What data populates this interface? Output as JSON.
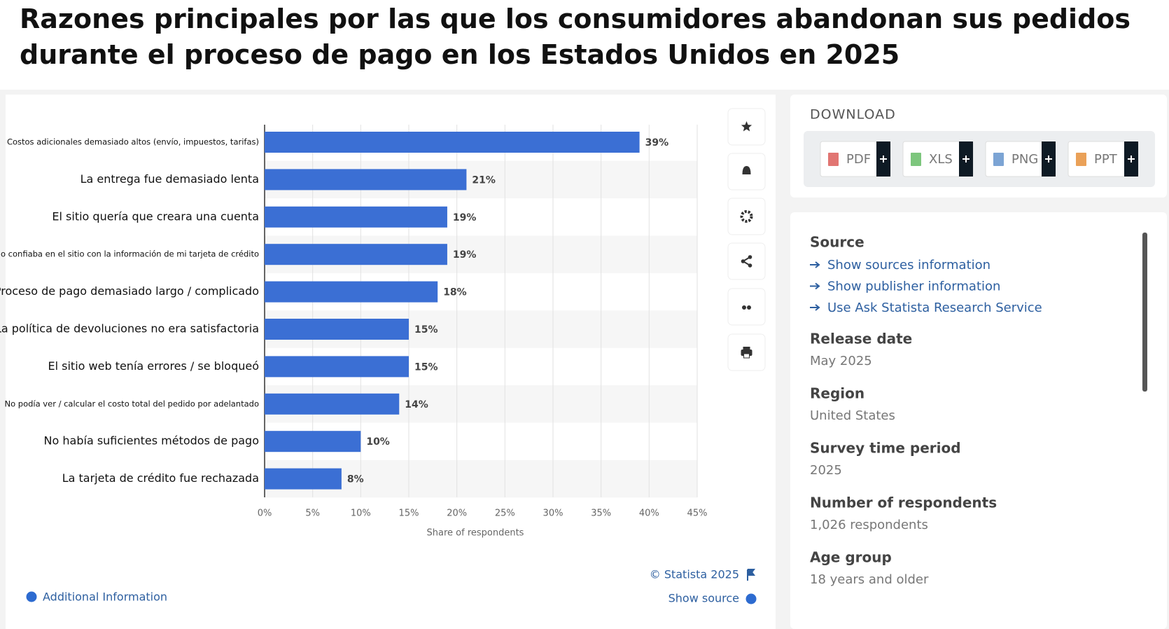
{
  "chart_data": {
    "type": "bar",
    "orientation": "horizontal",
    "title": "Razones principales por las que los consumidores abandonan sus pedidos durante el proceso de pago en los Estados Unidos en 2025",
    "categories": [
      "Costos adicionales demasiado altos (envío, impuestos, tarifas)",
      "La entrega fue demasiado lenta",
      "El sitio quería que creara una cuenta",
      "No confiaba en el sitio con la información de mi tarjeta de crédito",
      "Proceso de pago demasiado largo / complicado",
      "La política de devoluciones no era satisfactoria",
      "El sitio web tenía errores / se bloqueó",
      "No podía ver / calcular el costo total del pedido por adelantado",
      "No había suficientes métodos de pago",
      "La tarjeta de crédito fue rechazada"
    ],
    "values": [
      39,
      21,
      19,
      19,
      18,
      15,
      15,
      14,
      10,
      8
    ],
    "value_labels": [
      "39%",
      "21%",
      "19%",
      "19%",
      "18%",
      "15%",
      "15%",
      "14%",
      "10%",
      "8%"
    ],
    "color": "#3b6fd4",
    "xlim": [
      0,
      45
    ],
    "xticks": [
      {
        "value": 0,
        "label": "0%"
      },
      {
        "value": 5,
        "label": "5%"
      },
      {
        "value": 10,
        "label": "10%"
      },
      {
        "value": 15,
        "label": "15%"
      },
      {
        "value": 20,
        "label": "20%"
      },
      {
        "value": 25,
        "label": "25%"
      },
      {
        "value": 30,
        "label": "30%"
      },
      {
        "value": 35,
        "label": "35%"
      },
      {
        "value": 40,
        "label": "40%"
      },
      {
        "value": 45,
        "label": "45%"
      }
    ],
    "xlabel": "Share of respondents",
    "grid": true
  },
  "footer": {
    "credit": "© Statista 2025",
    "show_source": "Show source",
    "additional_info": "Additional Information"
  },
  "download": {
    "heading": "DOWNLOAD",
    "formats": [
      "PDF",
      "XLS",
      "PNG",
      "PPT"
    ]
  },
  "details": {
    "source_heading": "Source",
    "links": [
      "Show sources information",
      "Show publisher information",
      "Use Ask Statista Research Service"
    ],
    "items": [
      {
        "label": "Release date",
        "value": "May 2025"
      },
      {
        "label": "Region",
        "value": "United States"
      },
      {
        "label": "Survey time period",
        "value": "2025"
      },
      {
        "label": "Number of respondents",
        "value": "1,026 respondents"
      },
      {
        "label": "Age group",
        "value": "18 years and older"
      }
    ]
  }
}
